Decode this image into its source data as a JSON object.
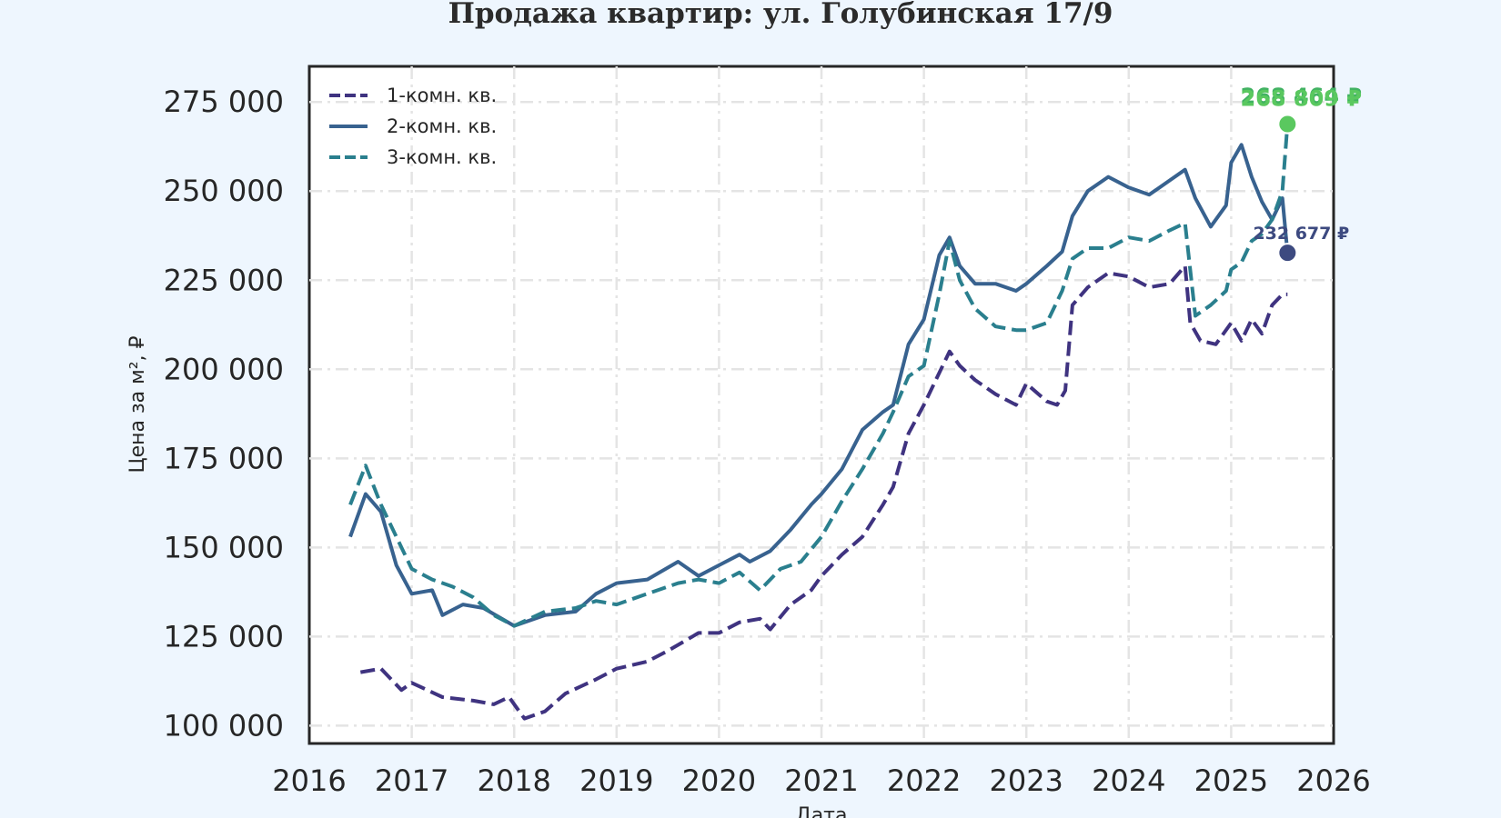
{
  "chart_data": {
    "type": "line",
    "title": "Продажа квартир: ул. Голубинская 17/9",
    "xlabel": "Дата",
    "ylabel": "Цена за м², ₽",
    "xlim": [
      2016,
      2026
    ],
    "ylim": [
      95000,
      285000
    ],
    "x_ticks": [
      "2016",
      "2017",
      "2018",
      "2019",
      "2020",
      "2021",
      "2022",
      "2023",
      "2024",
      "2025",
      "2026"
    ],
    "y_ticks": [
      "100 000",
      "125 000",
      "150 000",
      "175 000",
      "200 000",
      "225 000",
      "250 000",
      "275 000"
    ],
    "grid": true,
    "legend_position": "top-left",
    "series": [
      {
        "name": "1-комн. кв.",
        "color": "#3f3380",
        "dash": "dashed",
        "x": [
          2016.5,
          2016.7,
          2016.9,
          2017.0,
          2017.3,
          2017.6,
          2017.8,
          2017.95,
          2018.1,
          2018.3,
          2018.5,
          2018.8,
          2019.0,
          2019.3,
          2019.5,
          2019.8,
          2020.0,
          2020.2,
          2020.4,
          2020.5,
          2020.7,
          2020.9,
          2021.0,
          2021.2,
          2021.4,
          2021.6,
          2021.7,
          2021.85,
          2022.0,
          2022.15,
          2022.25,
          2022.35,
          2022.5,
          2022.7,
          2022.9,
          2023.0,
          2023.2,
          2023.3,
          2023.38,
          2023.45,
          2023.6,
          2023.8,
          2024.0,
          2024.2,
          2024.4,
          2024.55,
          2024.6,
          2024.7,
          2024.85,
          2025.0,
          2025.1,
          2025.2,
          2025.3,
          2025.4,
          2025.5,
          2025.55
        ],
        "values": [
          115000,
          116000,
          110000,
          112000,
          108000,
          107000,
          106000,
          108000,
          102000,
          104000,
          109000,
          113000,
          116000,
          118000,
          121000,
          126000,
          126000,
          129000,
          130000,
          127000,
          134000,
          138000,
          142000,
          148000,
          153000,
          162000,
          167000,
          182000,
          190000,
          199000,
          205000,
          201000,
          197000,
          193000,
          190000,
          196000,
          191000,
          190000,
          194000,
          218000,
          223000,
          227000,
          226000,
          223000,
          224000,
          229000,
          213000,
          208000,
          207000,
          213000,
          208000,
          214000,
          210000,
          218000,
          221000,
          221000
        ]
      },
      {
        "name": "2-комн. кв.",
        "color": "#38628f",
        "dash": "solid",
        "x": [
          2016.4,
          2016.55,
          2016.7,
          2016.85,
          2017.0,
          2017.2,
          2017.3,
          2017.5,
          2017.7,
          2018.0,
          2018.3,
          2018.6,
          2018.8,
          2019.0,
          2019.3,
          2019.6,
          2019.8,
          2020.0,
          2020.2,
          2020.3,
          2020.5,
          2020.7,
          2020.9,
          2021.0,
          2021.2,
          2021.4,
          2021.6,
          2021.7,
          2021.85,
          2022.0,
          2022.15,
          2022.25,
          2022.35,
          2022.5,
          2022.7,
          2022.9,
          2023.0,
          2023.2,
          2023.35,
          2023.45,
          2023.6,
          2023.8,
          2024.0,
          2024.2,
          2024.4,
          2024.55,
          2024.65,
          2024.8,
          2024.95,
          2025.0,
          2025.1,
          2025.2,
          2025.3,
          2025.4,
          2025.5,
          2025.55
        ],
        "values": [
          153000,
          165000,
          160000,
          145000,
          137000,
          138000,
          131000,
          134000,
          133000,
          128000,
          131000,
          132000,
          137000,
          140000,
          141000,
          146000,
          142000,
          145000,
          148000,
          146000,
          149000,
          155000,
          162000,
          165000,
          172000,
          183000,
          188000,
          190000,
          207000,
          214000,
          232000,
          237000,
          229000,
          224000,
          224000,
          222000,
          224000,
          229000,
          233000,
          243000,
          250000,
          254000,
          251000,
          249000,
          253000,
          256000,
          248000,
          240000,
          246000,
          258000,
          263000,
          254000,
          247000,
          242000,
          248000,
          232677
        ]
      },
      {
        "name": "3-комн. кв.",
        "color": "#2a7f8e",
        "dash": "dashed",
        "x": [
          2016.4,
          2016.55,
          2016.7,
          2016.85,
          2017.0,
          2017.2,
          2017.4,
          2017.6,
          2017.8,
          2018.0,
          2018.3,
          2018.6,
          2018.8,
          2019.0,
          2019.3,
          2019.6,
          2019.8,
          2020.0,
          2020.2,
          2020.4,
          2020.6,
          2020.8,
          2021.0,
          2021.2,
          2021.4,
          2021.6,
          2021.7,
          2021.85,
          2022.0,
          2022.15,
          2022.25,
          2022.35,
          2022.5,
          2022.7,
          2022.9,
          2023.0,
          2023.2,
          2023.35,
          2023.45,
          2023.6,
          2023.8,
          2024.0,
          2024.2,
          2024.4,
          2024.55,
          2024.65,
          2024.8,
          2024.95,
          2025.0,
          2025.1,
          2025.2,
          2025.3,
          2025.4,
          2025.5,
          2025.55
        ],
        "values": [
          162000,
          173000,
          162000,
          153000,
          144000,
          141000,
          139000,
          136000,
          131000,
          128000,
          132000,
          133000,
          135000,
          134000,
          137000,
          140000,
          141000,
          140000,
          143000,
          138000,
          144000,
          146000,
          153000,
          163000,
          172000,
          182000,
          188000,
          198000,
          201000,
          221000,
          236000,
          225000,
          217000,
          212000,
          211000,
          211000,
          213000,
          222000,
          231000,
          234000,
          234000,
          237000,
          236000,
          239000,
          241000,
          215000,
          218000,
          222000,
          228000,
          230000,
          236000,
          238000,
          242000,
          250000,
          268809
        ]
      }
    ],
    "end_markers": [
      {
        "label": "268 464 ₽",
        "value": 268464,
        "x": 2025.55,
        "color": "#41b262"
      },
      {
        "label": "268 809 ₽",
        "value": 268809,
        "x": 2025.55,
        "color": "#5ac85f"
      },
      {
        "label": "232 677 ₽",
        "value": 232677,
        "x": 2025.55,
        "color": "#3d4a80"
      }
    ]
  }
}
